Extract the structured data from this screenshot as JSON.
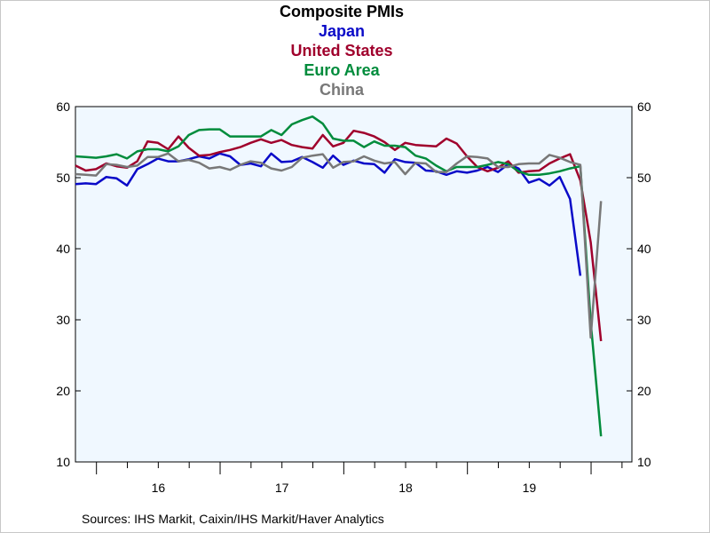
{
  "chart_data": {
    "type": "line",
    "title": "Composite PMIs",
    "series_titles": [
      "Japan",
      "United States",
      "Euro Area",
      "China"
    ],
    "source": "Sources:  IHS Markit, Caixin/IHS Markit/Haver Analytics",
    "ylim": [
      10,
      60
    ],
    "yticks": [
      "10",
      "20",
      "30",
      "40",
      "50",
      "60"
    ],
    "xlim": [
      2015.83,
      2020.33
    ],
    "year_labels": [
      "16",
      "17",
      "18",
      "19"
    ],
    "grid": false,
    "series": [
      {
        "name": "Japan",
        "color": "#0a0ac8",
        "start": 2015.83,
        "values": [
          49.1,
          49.2,
          49.1,
          50.1,
          49.9,
          48.9,
          51.2,
          51.9,
          52.7,
          52.3,
          52.3,
          52.6,
          53.0,
          52.7,
          53.4,
          53.0,
          51.8,
          52.0,
          51.6,
          53.4,
          52.2,
          52.3,
          52.9,
          52.2,
          51.4,
          53.1,
          51.8,
          52.4,
          52.0,
          51.9,
          50.7,
          52.6,
          52.2,
          52.1,
          51.0,
          50.9,
          50.4,
          50.9,
          50.7,
          51.0,
          51.5,
          50.8,
          51.9,
          51.3,
          49.3,
          49.8,
          48.9,
          50.1,
          47.0,
          36.2
        ]
      },
      {
        "name": "United States",
        "color": "#a0002c",
        "start": 2015.83,
        "values": [
          51.7,
          51.0,
          51.2,
          52.0,
          51.6,
          51.4,
          52.3,
          55.1,
          54.9,
          54.0,
          55.8,
          54.2,
          53.1,
          53.2,
          53.6,
          53.9,
          54.3,
          54.9,
          55.4,
          54.9,
          55.3,
          54.6,
          54.3,
          54.1,
          56.0,
          54.4,
          54.9,
          56.6,
          56.3,
          55.8,
          55.0,
          53.9,
          54.9,
          54.6,
          54.5,
          54.4,
          55.5,
          54.8,
          53.0,
          51.5,
          50.9,
          51.4,
          52.3,
          50.7,
          50.9,
          51.0,
          52.0,
          52.7,
          53.3,
          49.6,
          40.9,
          27.0
        ]
      },
      {
        "name": "Euro Area",
        "color": "#008c3c",
        "start": 2015.83,
        "values": [
          53.0,
          52.9,
          52.8,
          53.0,
          53.3,
          52.7,
          53.7,
          54.0,
          54.0,
          53.7,
          54.4,
          56.0,
          56.7,
          56.8,
          56.8,
          55.8,
          55.8,
          55.8,
          55.8,
          56.7,
          56.0,
          57.5,
          58.1,
          58.6,
          57.6,
          55.5,
          55.2,
          55.2,
          54.3,
          55.1,
          54.5,
          54.5,
          54.3,
          53.1,
          52.7,
          51.7,
          50.9,
          51.5,
          51.5,
          51.5,
          51.8,
          52.2,
          51.9,
          50.9,
          50.4,
          50.4,
          50.6,
          50.9,
          51.3,
          51.6,
          29.7,
          13.6
        ]
      },
      {
        "name": "China",
        "color": "#787878",
        "start": 2015.83,
        "values": [
          50.5,
          50.4,
          50.3,
          51.9,
          51.8,
          51.5,
          51.7,
          52.9,
          52.9,
          53.4,
          52.3,
          52.5,
          52.1,
          51.3,
          51.5,
          51.1,
          51.8,
          52.3,
          52.1,
          51.3,
          51.0,
          51.5,
          52.8,
          53.1,
          53.3,
          51.4,
          52.2,
          52.3,
          53.0,
          52.4,
          52.0,
          52.2,
          50.5,
          52.1,
          52.0,
          50.8,
          50.8,
          52.0,
          53.0,
          52.9,
          52.7,
          51.5,
          51.5,
          51.9,
          52.0,
          52.0,
          53.2,
          52.8,
          52.2,
          51.8,
          27.5,
          46.7
        ]
      }
    ]
  }
}
